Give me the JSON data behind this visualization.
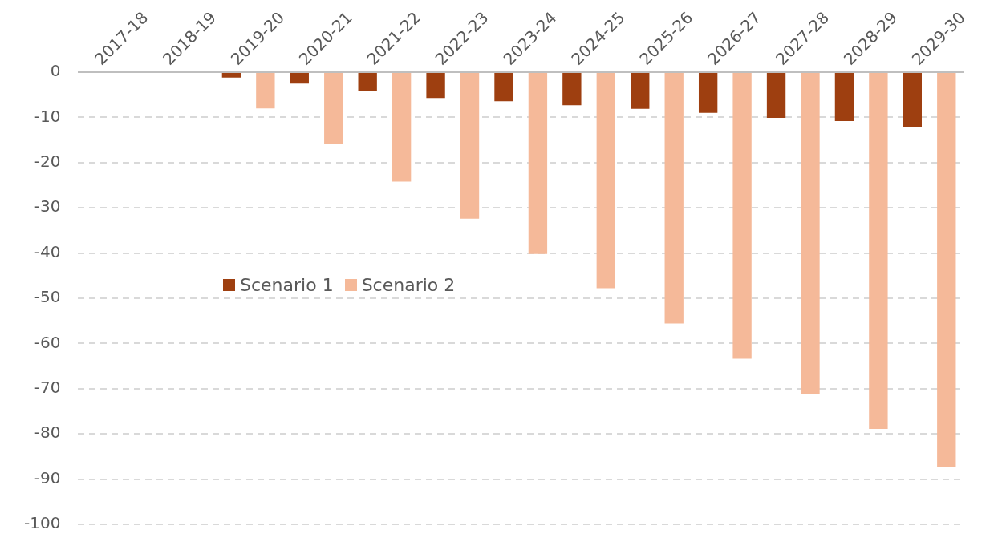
{
  "chart_data": {
    "type": "bar",
    "categories": [
      "2017-18",
      "2018-19",
      "2019-20",
      "2020-21",
      "2021-22",
      "2022-23",
      "2023-24",
      "2024-25",
      "2025-26",
      "2026-27",
      "2027-28",
      "2028-29",
      "2029-30"
    ],
    "series": [
      {
        "name": "Scenario 1",
        "color": "#9e3f10",
        "values": [
          null,
          null,
          -1.2,
          -2.5,
          -4.2,
          -5.7,
          -6.4,
          -7.3,
          -8.1,
          -9.0,
          -10.1,
          -10.8,
          -12.2
        ]
      },
      {
        "name": "Scenario 2",
        "color": "#f5b999",
        "values": [
          null,
          null,
          -8.0,
          -15.9,
          -24.2,
          -32.4,
          -40.2,
          -47.8,
          -55.6,
          -63.4,
          -71.2,
          -78.9,
          -87.4
        ]
      }
    ],
    "ylim": [
      -100,
      0
    ],
    "yticks": [
      0,
      -10,
      -20,
      -30,
      -40,
      -50,
      -60,
      -70,
      -80,
      -90,
      -100
    ],
    "grid": "y",
    "legend": "left"
  }
}
